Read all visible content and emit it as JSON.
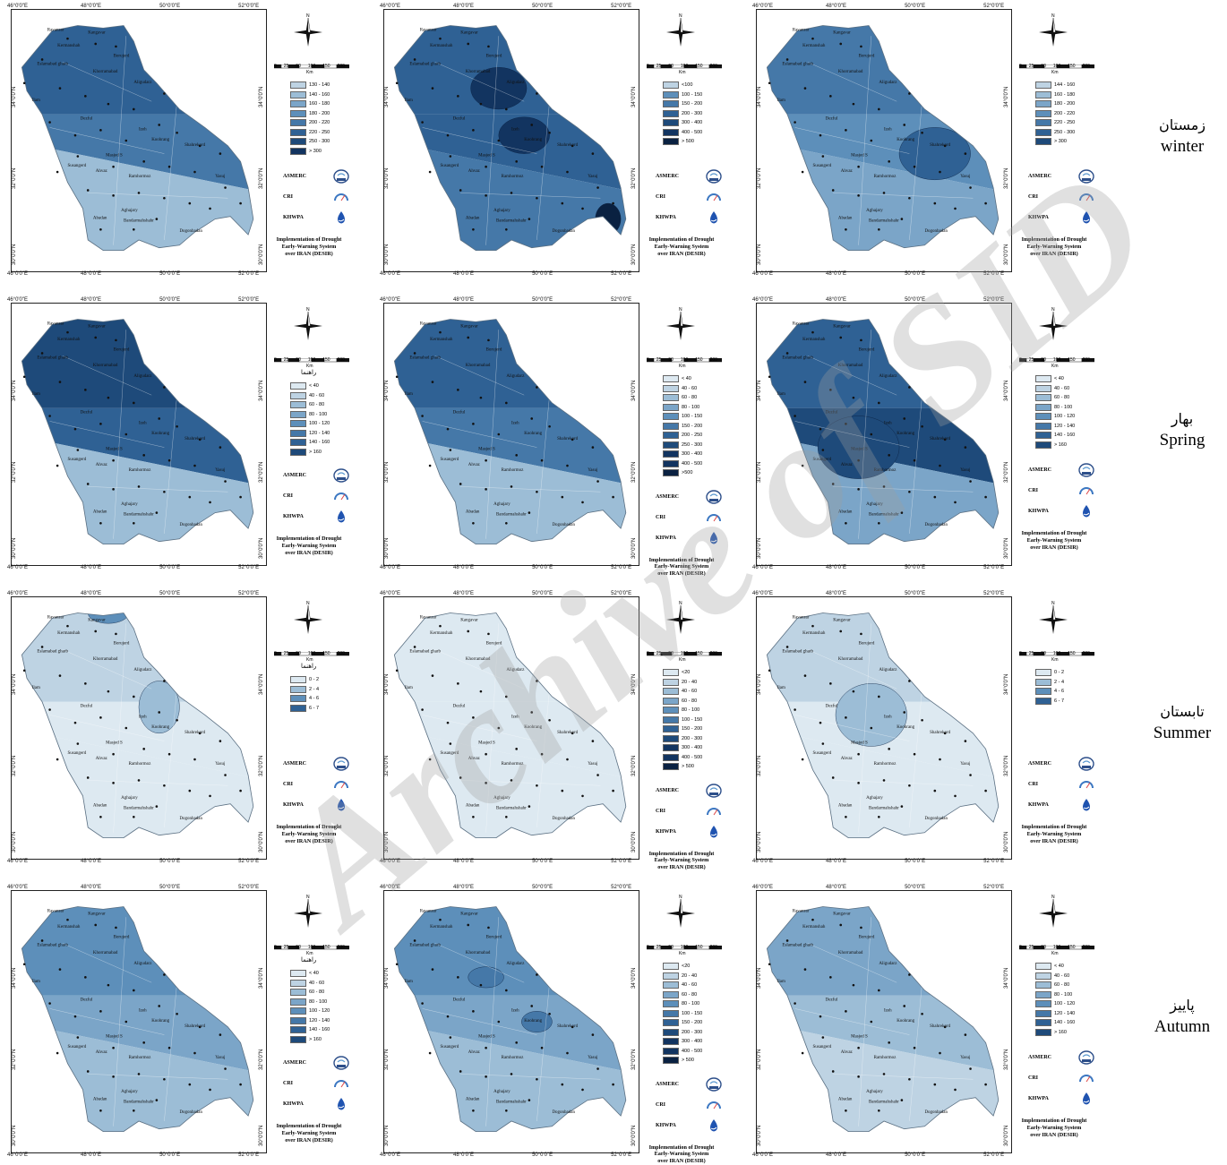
{
  "ticks": {
    "lon": [
      "46°0'0\"E",
      "48°0'0\"E",
      "50°0'0\"E",
      "52°0'0\"E"
    ],
    "lat": [
      "34°0'0\"N",
      "32°0'0\"N",
      "30°0'0\"N"
    ]
  },
  "scale": {
    "labels": [
      "0",
      "25",
      "50",
      "100",
      "150",
      "200"
    ],
    "unit": "Km"
  },
  "legend_title": "راهنما",
  "orgs": [
    "ASMERC",
    "CRI",
    "KHWPA"
  ],
  "implementation": [
    "Implementation of Drought",
    "Early-Warning System",
    "over IRAN (DESIR)"
  ],
  "watermark": "Archive of SID",
  "cities": [
    "Kangavar",
    "Kermanshah",
    "Ravansar",
    "Eslamabad gharb",
    "Borujerd",
    "Khorramabad",
    "Aligudarz",
    "Dezful",
    "Koohrang",
    "Shahrekord",
    "Masjed S",
    "Ahvaz",
    "Ramhormoz",
    "Aghajary",
    "Bandarmahshahr",
    "Abadan",
    "Yasuj",
    "Dogonbadan",
    "Izeh",
    "Susangerd",
    "Ilam"
  ],
  "colors": [
    "#dde9f1",
    "#bed3e3",
    "#9cbdd6",
    "#7ba5c8",
    "#5d8fba",
    "#4578a8",
    "#2f6194",
    "#1e4a7a",
    "#123460",
    "#0a2141"
  ],
  "seasons": [
    {
      "fa": "زمستان",
      "en": "winter"
    },
    {
      "fa": "بهار",
      "en": "Spring"
    },
    {
      "fa": "تابستان",
      "en": "Summer"
    },
    {
      "fa": "پاییز",
      "en": "Autumn"
    }
  ],
  "panels": [
    {
      "row": 0,
      "col": 0,
      "title": false,
      "legend": [
        {
          "label": "130 - 140",
          "c": 1
        },
        {
          "label": "140 - 160",
          "c": 2
        },
        {
          "label": "160 - 180",
          "c": 3
        },
        {
          "label": "180 - 200",
          "c": 4
        },
        {
          "label": "200 - 220",
          "c": 5
        },
        {
          "label": "220 - 250",
          "c": 6
        },
        {
          "label": "250 - 300",
          "c": 7
        },
        {
          "label": "> 300",
          "c": 8
        }
      ]
    },
    {
      "row": 0,
      "col": 1,
      "title": false,
      "legend": [
        {
          "label": "<100",
          "c": 1
        },
        {
          "label": "100 - 150",
          "c": 4
        },
        {
          "label": "150 - 200",
          "c": 5
        },
        {
          "label": "200 - 300",
          "c": 6
        },
        {
          "label": "300 - 400",
          "c": 7
        },
        {
          "label": "400 - 500",
          "c": 8
        },
        {
          "label": "> 500",
          "c": 9
        }
      ]
    },
    {
      "row": 0,
      "col": 2,
      "title": false,
      "legend": [
        {
          "label": "144 - 160",
          "c": 1
        },
        {
          "label": "160 - 180",
          "c": 2
        },
        {
          "label": "180 - 200",
          "c": 3
        },
        {
          "label": "200 - 220",
          "c": 4
        },
        {
          "label": "220 - 250",
          "c": 5
        },
        {
          "label": "250 - 300",
          "c": 6
        },
        {
          "label": "> 300",
          "c": 7
        }
      ]
    },
    {
      "row": 1,
      "col": 0,
      "title": true,
      "legend": [
        {
          "label": "< 40",
          "c": 0
        },
        {
          "label": "40 - 60",
          "c": 1
        },
        {
          "label": "60 - 80",
          "c": 2
        },
        {
          "label": "80 - 100",
          "c": 3
        },
        {
          "label": "100 - 120",
          "c": 4
        },
        {
          "label": "120 - 140",
          "c": 5
        },
        {
          "label": "140 - 160",
          "c": 6
        },
        {
          "label": "> 160",
          "c": 7
        }
      ]
    },
    {
      "row": 1,
      "col": 1,
      "title": false,
      "legend": [
        {
          "label": "< 40",
          "c": 0
        },
        {
          "label": "40 - 60",
          "c": 1
        },
        {
          "label": "60 - 80",
          "c": 2
        },
        {
          "label": "80 - 100",
          "c": 3
        },
        {
          "label": "100 - 150",
          "c": 4
        },
        {
          "label": "150 - 200",
          "c": 5
        },
        {
          "label": "200 - 250",
          "c": 6
        },
        {
          "label": "250 - 300",
          "c": 7
        },
        {
          "label": "300 - 400",
          "c": 8
        },
        {
          "label": "400 - 500",
          "c": 8
        },
        {
          "label": ">500",
          "c": 9
        }
      ]
    },
    {
      "row": 1,
      "col": 2,
      "title": false,
      "legend": [
        {
          "label": "< 40",
          "c": 0
        },
        {
          "label": "40 - 60",
          "c": 1
        },
        {
          "label": "60 - 80",
          "c": 2
        },
        {
          "label": "80 - 100",
          "c": 3
        },
        {
          "label": "100 - 120",
          "c": 4
        },
        {
          "label": "120 - 140",
          "c": 5
        },
        {
          "label": "140 - 160",
          "c": 6
        },
        {
          "label": "> 160",
          "c": 7
        }
      ]
    },
    {
      "row": 2,
      "col": 0,
      "title": true,
      "legend": [
        {
          "label": "0 - 2",
          "c": 0
        },
        {
          "label": "2 - 4",
          "c": 2
        },
        {
          "label": "4 - 6",
          "c": 4
        },
        {
          "label": "6 - 7",
          "c": 6
        }
      ]
    },
    {
      "row": 2,
      "col": 1,
      "title": false,
      "legend": [
        {
          "label": "<20",
          "c": 0
        },
        {
          "label": "20 - 40",
          "c": 1
        },
        {
          "label": "40 - 60",
          "c": 2
        },
        {
          "label": "60 - 80",
          "c": 3
        },
        {
          "label": "80 - 100",
          "c": 4
        },
        {
          "label": "100 - 150",
          "c": 5
        },
        {
          "label": "150 - 200",
          "c": 6
        },
        {
          "label": "200 - 300",
          "c": 7
        },
        {
          "label": "300 - 400",
          "c": 8
        },
        {
          "label": "400 - 500",
          "c": 8
        },
        {
          "label": "> 500",
          "c": 9
        }
      ]
    },
    {
      "row": 2,
      "col": 2,
      "title": false,
      "legend": [
        {
          "label": "0 - 2",
          "c": 0
        },
        {
          "label": "2 - 4",
          "c": 2
        },
        {
          "label": "4 - 6",
          "c": 4
        },
        {
          "label": "6 - 7",
          "c": 6
        }
      ]
    },
    {
      "row": 3,
      "col": 0,
      "title": true,
      "legend": [
        {
          "label": "< 40",
          "c": 0
        },
        {
          "label": "40 - 60",
          "c": 1
        },
        {
          "label": "60 - 80",
          "c": 2
        },
        {
          "label": "80 - 100",
          "c": 3
        },
        {
          "label": "100 - 120",
          "c": 4
        },
        {
          "label": "120 - 140",
          "c": 5
        },
        {
          "label": "140 - 160",
          "c": 6
        },
        {
          "label": "> 160",
          "c": 7
        }
      ]
    },
    {
      "row": 3,
      "col": 1,
      "title": false,
      "legend": [
        {
          "label": "<20",
          "c": 0
        },
        {
          "label": "20 - 40",
          "c": 1
        },
        {
          "label": "40 - 60",
          "c": 2
        },
        {
          "label": "60 - 80",
          "c": 3
        },
        {
          "label": "80 - 100",
          "c": 4
        },
        {
          "label": "100 - 150",
          "c": 5
        },
        {
          "label": "150 - 200",
          "c": 6
        },
        {
          "label": "200 - 300",
          "c": 7
        },
        {
          "label": "300 - 400",
          "c": 8
        },
        {
          "label": "400 - 500",
          "c": 8
        },
        {
          "label": "> 500",
          "c": 9
        }
      ]
    },
    {
      "row": 3,
      "col": 2,
      "title": false,
      "legend": [
        {
          "label": "< 40",
          "c": 0
        },
        {
          "label": "40 - 60",
          "c": 1
        },
        {
          "label": "60 - 80",
          "c": 2
        },
        {
          "label": "80 - 100",
          "c": 3
        },
        {
          "label": "100 - 120",
          "c": 4
        },
        {
          "label": "120 - 140",
          "c": 5
        },
        {
          "label": "140 - 160",
          "c": 6
        },
        {
          "label": "> 160",
          "c": 7
        }
      ]
    }
  ]
}
